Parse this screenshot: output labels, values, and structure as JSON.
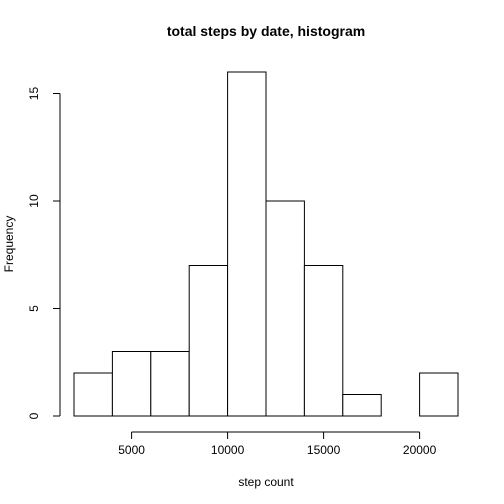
{
  "chart_data": {
    "type": "histogram",
    "title": "total steps by date, histogram",
    "xlabel": "step count",
    "ylabel": "Frequency",
    "bins": [
      {
        "from": 2000,
        "to": 4000,
        "count": 2
      },
      {
        "from": 4000,
        "to": 6000,
        "count": 3
      },
      {
        "from": 6000,
        "to": 8000,
        "count": 3
      },
      {
        "from": 8000,
        "to": 10000,
        "count": 7
      },
      {
        "from": 10000,
        "to": 12000,
        "count": 16
      },
      {
        "from": 12000,
        "to": 14000,
        "count": 10
      },
      {
        "from": 14000,
        "to": 16000,
        "count": 7
      },
      {
        "from": 16000,
        "to": 18000,
        "count": 1
      },
      {
        "from": 18000,
        "to": 20000,
        "count": 0
      },
      {
        "from": 20000,
        "to": 22000,
        "count": 2
      }
    ],
    "xlim": [
      2000,
      22000
    ],
    "ylim": [
      0,
      16
    ],
    "xticks": [
      5000,
      10000,
      15000,
      20000
    ],
    "xtick_labels": [
      "5000",
      "10000",
      "15000",
      "20000"
    ],
    "yticks": [
      0,
      5,
      10,
      15
    ],
    "ytick_labels": [
      "0",
      "5",
      "10",
      "15"
    ],
    "grid": false,
    "legend": "none",
    "bar_fill": "#ffffff",
    "bar_stroke": "#000000"
  }
}
